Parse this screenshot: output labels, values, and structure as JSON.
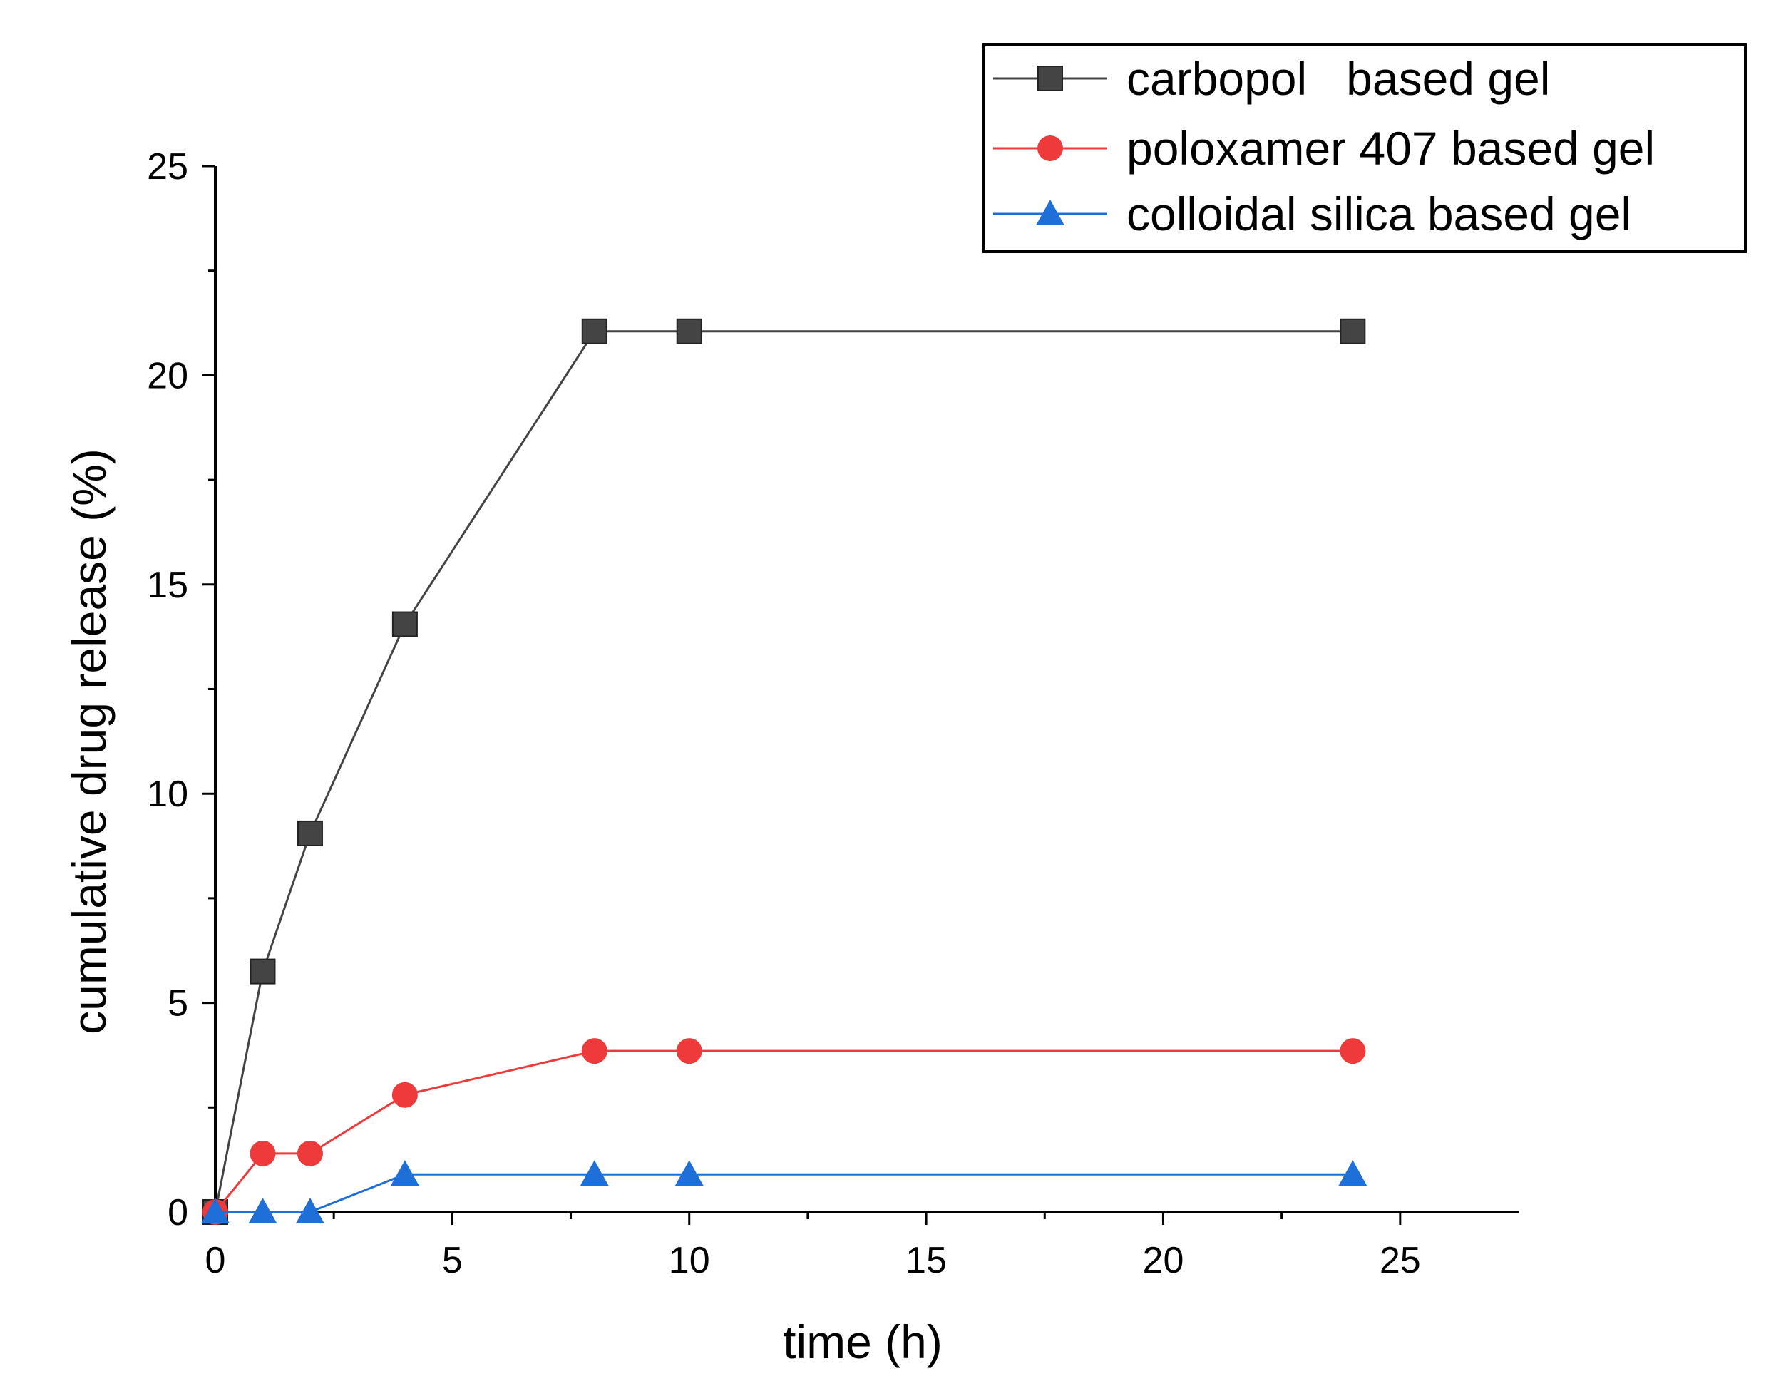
{
  "chart_data": {
    "type": "line",
    "title": "",
    "xlabel": "time (h)",
    "ylabel": "cumulative  drug release (%)",
    "xlim": [
      0,
      27.5
    ],
    "ylim": [
      0,
      25
    ],
    "xticks": [
      0,
      5,
      10,
      15,
      20,
      25
    ],
    "yticks": [
      0,
      5,
      10,
      15,
      20,
      25
    ],
    "x_tick_labels": [
      "0",
      "5",
      "10",
      "15",
      "20",
      "25"
    ],
    "y_tick_labels": [
      "0",
      "5",
      "10",
      "15",
      "20",
      "25"
    ],
    "legend_position": "top-right",
    "series": [
      {
        "name": "carbopol   based gel",
        "color": "#444444",
        "marker": "square",
        "x": [
          0,
          1,
          2,
          4,
          8,
          10,
          24
        ],
        "values": [
          0,
          5.75,
          9.05,
          14.05,
          21.05,
          21.05,
          21.05
        ]
      },
      {
        "name": "poloxamer 407 based gel",
        "color": "#ee3a3a",
        "marker": "circle",
        "x": [
          0,
          1,
          2,
          4,
          8,
          10,
          24
        ],
        "values": [
          0,
          1.4,
          1.4,
          2.8,
          3.85,
          3.85,
          3.85
        ]
      },
      {
        "name": "colloidal silica based gel",
        "color": "#1f6fd8",
        "marker": "triangle",
        "x": [
          0,
          1,
          2,
          4,
          8,
          10,
          24
        ],
        "values": [
          0,
          0,
          0,
          0.9,
          0.9,
          0.9,
          0.9
        ]
      }
    ]
  }
}
